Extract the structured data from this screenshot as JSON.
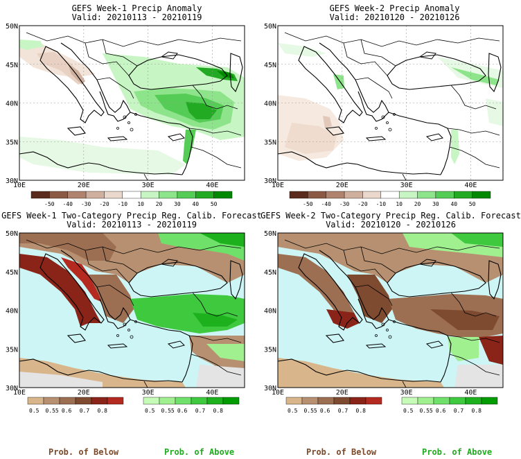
{
  "panels": [
    {
      "title": "GEFS Week-1 Precip Anomaly",
      "valid": "Valid: 20210113 - 20210119"
    },
    {
      "title": "GEFS Week-2 Precip Anomaly",
      "valid": "Valid: 20210120 - 20210126"
    },
    {
      "title": "GEFS Week-1 Two-Category Precip Reg. Calib. Forecast",
      "valid": "Valid: 20210113 - 20210119"
    },
    {
      "title": "GEFS Week-2 Two-Category Precip Reg. Calib. Forecast",
      "valid": "Valid: 20210120 - 20210126"
    }
  ],
  "axes": {
    "lat_labels": [
      "50N",
      "45N",
      "40N",
      "35N",
      "30N"
    ],
    "lon_labels": [
      "10E",
      "20E",
      "30E",
      "40E"
    ]
  },
  "anomaly_colorbar": {
    "ticks": [
      "-50",
      "-40",
      "-30",
      "-20",
      "-10",
      "10",
      "20",
      "30",
      "40",
      "50"
    ],
    "colors": [
      "#5a2a1c",
      "#8c5a44",
      "#b0836e",
      "#cfaf9e",
      "#ead8cc",
      "#ffffff",
      "#c8f5c4",
      "#8de48a",
      "#55cc55",
      "#22aa22",
      "#008800"
    ]
  },
  "below_colorbar": {
    "ticks": [
      "0.5",
      "0.55",
      "0.6",
      "0.7",
      "0.8"
    ],
    "colors": [
      "#d8b58a",
      "#b69070",
      "#9c6e52",
      "#7e4a30",
      "#8a2418",
      "#b52a20"
    ]
  },
  "above_colorbar": {
    "ticks": [
      "0.5",
      "0.55",
      "0.6",
      "0.7",
      "0.8"
    ],
    "colors": [
      "#c6fbb8",
      "#a0f090",
      "#6fe06a",
      "#3fc93f",
      "#1db21d",
      "#009c00"
    ]
  },
  "legend": {
    "below_label": "Prob. of Below",
    "above_label": "Prob. of Above",
    "below_color": "#7a4a2a",
    "above_color": "#22aa22"
  },
  "map_colors": {
    "sea_prob": "#cdf5f5",
    "no_data": "#e4e4e4"
  }
}
